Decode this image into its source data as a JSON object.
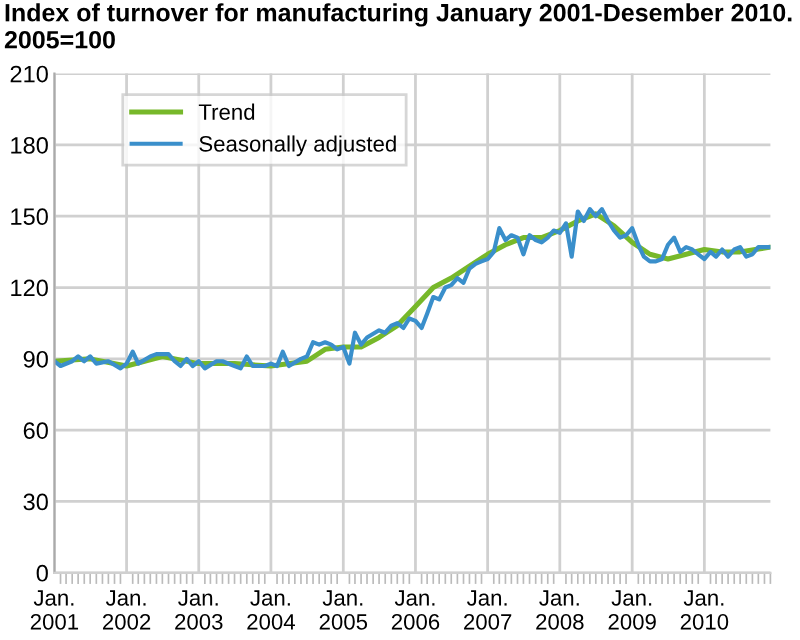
{
  "chart_data": {
    "type": "line",
    "title": "Index of turnover for manufacturing January 2001-Desember 2010.\n2005=100",
    "series": [
      {
        "name": "Trend",
        "color": "#77b82a",
        "x": [
          "2001-01",
          "2001-07",
          "2002-01",
          "2002-07",
          "2003-01",
          "2003-07",
          "2004-01",
          "2004-07",
          "2004-10",
          "2005-01",
          "2005-04",
          "2005-07",
          "2005-10",
          "2006-01",
          "2006-04",
          "2006-07",
          "2006-10",
          "2007-01",
          "2007-04",
          "2007-07",
          "2007-10",
          "2008-01",
          "2008-04",
          "2008-07",
          "2008-10",
          "2009-01",
          "2009-04",
          "2009-07",
          "2009-10",
          "2010-01",
          "2010-04",
          "2010-07",
          "2010-12"
        ],
        "values": [
          89,
          90,
          87,
          91,
          88,
          88,
          87,
          89,
          94,
          95,
          95,
          99,
          104,
          112,
          120,
          124,
          129,
          134,
          138,
          141,
          141,
          144,
          148,
          151,
          146,
          139,
          134,
          132,
          134,
          136,
          135,
          135,
          137
        ]
      },
      {
        "name": "Seasonally adjusted",
        "color": "#3a8fcb",
        "x": [
          "2001-01",
          "2001-02",
          "2001-04",
          "2001-05",
          "2001-06",
          "2001-07",
          "2001-08",
          "2001-10",
          "2001-12",
          "2002-01",
          "2002-02",
          "2002-03",
          "2002-05",
          "2002-06",
          "2002-08",
          "2002-09",
          "2002-10",
          "2002-11",
          "2002-12",
          "2003-01",
          "2003-02",
          "2003-04",
          "2003-05",
          "2003-07",
          "2003-08",
          "2003-09",
          "2003-10",
          "2003-12",
          "2004-01",
          "2004-02",
          "2004-03",
          "2004-04",
          "2004-06",
          "2004-07",
          "2004-08",
          "2004-09",
          "2004-10",
          "2004-11",
          "2004-12",
          "2005-01",
          "2005-02",
          "2005-03",
          "2005-04",
          "2005-05",
          "2005-07",
          "2005-08",
          "2005-09",
          "2005-10",
          "2005-11",
          "2005-12",
          "2006-01",
          "2006-02",
          "2006-03",
          "2006-04",
          "2006-05",
          "2006-06",
          "2006-07",
          "2006-08",
          "2006-09",
          "2006-10",
          "2006-11",
          "2006-12",
          "2007-01",
          "2007-02",
          "2007-03",
          "2007-04",
          "2007-05",
          "2007-06",
          "2007-07",
          "2007-08",
          "2007-09",
          "2007-10",
          "2007-11",
          "2007-12",
          "2008-01",
          "2008-02",
          "2008-03",
          "2008-04",
          "2008-05",
          "2008-06",
          "2008-07",
          "2008-08",
          "2008-09",
          "2008-10",
          "2008-11",
          "2008-12",
          "2009-01",
          "2009-02",
          "2009-03",
          "2009-04",
          "2009-05",
          "2009-06",
          "2009-07",
          "2009-08",
          "2009-09",
          "2009-10",
          "2009-11",
          "2009-12",
          "2010-01",
          "2010-02",
          "2010-03",
          "2010-04",
          "2010-05",
          "2010-06",
          "2010-07",
          "2010-08",
          "2010-09",
          "2010-10",
          "2010-11",
          "2010-12"
        ],
        "values": [
          89,
          87,
          89,
          91,
          89,
          91,
          88,
          89,
          86,
          88,
          93,
          88,
          91,
          92,
          92,
          89,
          87,
          90,
          87,
          89,
          86,
          89,
          89,
          87,
          86,
          91,
          87,
          87,
          88,
          87,
          93,
          87,
          90,
          91,
          97,
          96,
          97,
          96,
          94,
          95,
          88,
          101,
          96,
          99,
          102,
          101,
          104,
          105,
          103,
          107,
          106,
          103,
          109,
          116,
          115,
          120,
          121,
          124,
          122,
          128,
          130,
          131,
          132,
          135,
          145,
          140,
          142,
          141,
          134,
          142,
          140,
          139,
          141,
          144,
          143,
          147,
          133,
          152,
          148,
          153,
          150,
          153,
          148,
          144,
          141,
          142,
          145,
          138,
          133,
          131,
          131,
          132,
          138,
          141,
          135,
          137,
          136,
          134,
          132,
          135,
          133,
          136,
          133,
          136,
          137,
          133,
          134,
          137,
          137,
          137
        ]
      }
    ],
    "xlim": [
      "2001-01",
      "2010-12"
    ],
    "xticks": [
      {
        "value": "2001-01",
        "label": "Jan.\n2001"
      },
      {
        "value": "2002-01",
        "label": "Jan.\n2002"
      },
      {
        "value": "2003-01",
        "label": "Jan.\n2003"
      },
      {
        "value": "2004-01",
        "label": "Jan.\n2004"
      },
      {
        "value": "2005-01",
        "label": "Jan.\n2005"
      },
      {
        "value": "2006-01",
        "label": "Jan.\n2006"
      },
      {
        "value": "2007-01",
        "label": "Jan.\n2007"
      },
      {
        "value": "2008-01",
        "label": "Jan.\n2008"
      },
      {
        "value": "2009-01",
        "label": "Jan.\n2009"
      },
      {
        "value": "2010-01",
        "label": "Jan.\n2010"
      }
    ],
    "ylim": [
      0,
      210
    ],
    "yticks": [
      0,
      30,
      60,
      90,
      120,
      150,
      180,
      210
    ],
    "grid": true,
    "legend": "top left",
    "marker": "none",
    "line_style": "solid"
  }
}
